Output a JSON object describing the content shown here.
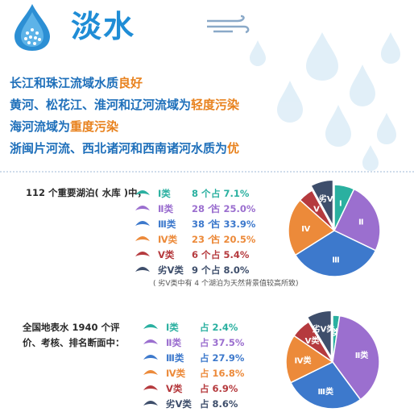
{
  "header": {
    "title": "淡水",
    "summary": [
      {
        "pre": "长江和珠江流域水质",
        "hl": "良好"
      },
      {
        "pre": "黄河、松花江、淮河和辽河流域为",
        "hl": "轻度污染"
      },
      {
        "pre": "海河流域为",
        "hl": "重度污染"
      },
      {
        "pre": "浙闽片河流、西北诸河和西南诸河水质为",
        "hl": "优"
      }
    ]
  },
  "colors": {
    "c1": "#2ab0a0",
    "c2": "#9b6fcf",
    "c3": "#3d79cc",
    "c4": "#ec8a3a",
    "c5": "#b53a3e",
    "c6": "#3e4e6b",
    "title": "#1f8dd6",
    "highlight": "#e8821e"
  },
  "lakes": {
    "intro": "112 个重要湖泊( 水库 )中，",
    "note": "( 劣Ⅴ类中有 4 个湖泊为天然背景值较高所致)",
    "legend": [
      {
        "label": "Ⅰ类",
        "count": "8 个",
        "pct": "占 7.1%"
      },
      {
        "label": "Ⅱ类",
        "count": "28 个",
        "pct": "占 25.0%"
      },
      {
        "label": "Ⅲ类",
        "count": "38 个",
        "pct": "占 33.9%"
      },
      {
        "label": "Ⅳ类",
        "count": "23 个",
        "pct": "占 20.5%"
      },
      {
        "label": "Ⅴ类",
        "count": "6 个",
        "pct": "占 5.4%"
      },
      {
        "label": "劣Ⅴ类",
        "count": "9 个",
        "pct": "占 8.0%"
      }
    ],
    "pie_labels": [
      "Ⅰ",
      "Ⅱ",
      "Ⅲ",
      "Ⅳ",
      "Ⅴ",
      "劣Ⅴ"
    ]
  },
  "sections": {
    "intro_lines": [
      "全国地表水 1940 个评",
      "价、考核、排名断面中："
    ],
    "legend": [
      {
        "label": "Ⅰ类",
        "pct": "占 2.4%"
      },
      {
        "label": "Ⅱ类",
        "pct": "占 37.5%"
      },
      {
        "label": "Ⅲ类",
        "pct": "占 27.9%"
      },
      {
        "label": "Ⅳ类",
        "pct": "占 16.8%"
      },
      {
        "label": "Ⅴ类",
        "pct": "占 6.9%"
      },
      {
        "label": "劣Ⅴ类",
        "pct": "占 8.6%"
      }
    ],
    "pie_labels": [
      "Ⅰ类",
      "Ⅱ类",
      "Ⅲ类",
      "Ⅳ类",
      "Ⅴ类",
      "劣Ⅴ类"
    ]
  },
  "chart_data": [
    {
      "type": "pie",
      "categories": [
        "Ⅰ类",
        "Ⅱ类",
        "Ⅲ类",
        "Ⅳ类",
        "Ⅴ类",
        "劣Ⅴ类"
      ],
      "values": [
        7.1,
        25.0,
        33.9,
        20.5,
        5.4,
        8.0
      ],
      "counts": [
        8,
        28,
        38,
        23,
        6,
        9
      ]
    },
    {
      "type": "pie",
      "categories": [
        "Ⅰ类",
        "Ⅱ类",
        "Ⅲ类",
        "Ⅳ类",
        "Ⅴ类",
        "劣Ⅴ类"
      ],
      "values": [
        2.4,
        37.5,
        27.9,
        16.8,
        6.9,
        8.6
      ]
    }
  ]
}
